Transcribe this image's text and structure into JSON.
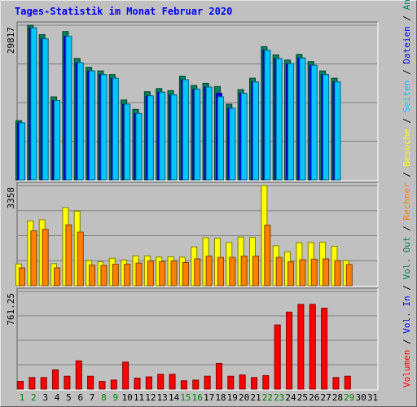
{
  "page": {
    "title": "Tages-Statistik im Monat Februar 2020"
  },
  "colors": {
    "background": "#c0c0c0",
    "title": "#0000ff",
    "grid": "#808080",
    "anfragen": "#00805c",
    "dateien": "#0000ff",
    "seiten": "#00c8ff",
    "besuche": "#ffff00",
    "rechner": "#ff8000",
    "volumen": "#ff0000",
    "weekday_label": "#000000",
    "weekend_label": "#008000"
  },
  "chart_data": [
    {
      "type": "bar",
      "name": "hits",
      "scale_label": "29817",
      "ylim": [
        0,
        29817
      ],
      "x": [
        "1",
        "2",
        "3",
        "4",
        "5",
        "6",
        "7",
        "8",
        "9",
        "10",
        "11",
        "12",
        "13",
        "14",
        "15",
        "16",
        "17",
        "18",
        "19",
        "20",
        "21",
        "22",
        "23",
        "24",
        "25",
        "26",
        "27",
        "28",
        "29",
        "30",
        "31"
      ],
      "weekend_days": [
        1,
        2,
        8,
        9,
        15,
        16,
        22,
        23,
        29
      ],
      "series": [
        {
          "name": "Anfragen",
          "color": "#00805c",
          "values": [
            11400,
            29800,
            28000,
            16000,
            28600,
            23400,
            21700,
            21000,
            20300,
            15400,
            13600,
            17000,
            17600,
            17200,
            20000,
            18200,
            18600,
            18000,
            14600,
            17400,
            19600,
            25700,
            24100,
            23100,
            24200,
            22800,
            21000,
            19600,
            0,
            0,
            0
          ]
        },
        {
          "name": "Dateien",
          "color": "#0000ff",
          "values": [
            11000,
            29300,
            27200,
            15300,
            27700,
            22600,
            21000,
            20300,
            19600,
            14600,
            12800,
            16200,
            16900,
            16400,
            19300,
            17500,
            17900,
            16700,
            13800,
            16700,
            18900,
            25000,
            23400,
            22400,
            23500,
            22100,
            20300,
            18900,
            0,
            0,
            0
          ]
        },
        {
          "name": "Seiten",
          "color": "#00c8ff",
          "values": [
            11000,
            29300,
            27200,
            15300,
            27700,
            22600,
            21000,
            20300,
            19600,
            14600,
            12800,
            16200,
            16900,
            16400,
            19300,
            17500,
            17900,
            16000,
            13800,
            16700,
            18900,
            25000,
            23400,
            22400,
            23500,
            22100,
            20300,
            18900,
            0,
            0,
            0
          ]
        }
      ],
      "side_labels": [
        "Anfragen",
        "Dateien",
        "Seiten"
      ]
    },
    {
      "type": "bar",
      "name": "visits",
      "scale_label": "3358",
      "ylim": [
        0,
        3358
      ],
      "series": [
        {
          "name": "Besuche",
          "color": "#ffff00",
          "values": [
            730,
            2170,
            2210,
            740,
            2620,
            2500,
            840,
            800,
            920,
            860,
            1000,
            1000,
            960,
            970,
            960,
            1300,
            1610,
            1590,
            1450,
            1630,
            1620,
            3360,
            1340,
            1130,
            1440,
            1450,
            1460,
            1320,
            840,
            0,
            0
          ]
        },
        {
          "name": "Rechner",
          "color": "#ff8000",
          "values": [
            600,
            1840,
            1890,
            600,
            2040,
            1800,
            690,
            680,
            720,
            720,
            760,
            830,
            810,
            830,
            780,
            900,
            990,
            950,
            950,
            990,
            990,
            2030,
            950,
            800,
            870,
            890,
            900,
            840,
            710,
            0,
            0
          ]
        }
      ],
      "side_labels": [
        "Besuche",
        "Rechner",
        "Vol. Out"
      ]
    },
    {
      "type": "bar",
      "name": "volume",
      "scale_label": "761.25",
      "ylim": [
        0,
        761.25
      ],
      "series": [
        {
          "name": "Volumen",
          "color": "#ff0000",
          "values": [
            60,
            90,
            90,
            150,
            100,
            220,
            100,
            60,
            70,
            210,
            85,
            95,
            115,
            115,
            65,
            70,
            100,
            200,
            100,
            110,
            90,
            105,
            500,
            600,
            660,
            660,
            630,
            90,
            100,
            0,
            0
          ]
        }
      ],
      "side_labels": [
        "Vol. In",
        "Volumen"
      ]
    }
  ]
}
